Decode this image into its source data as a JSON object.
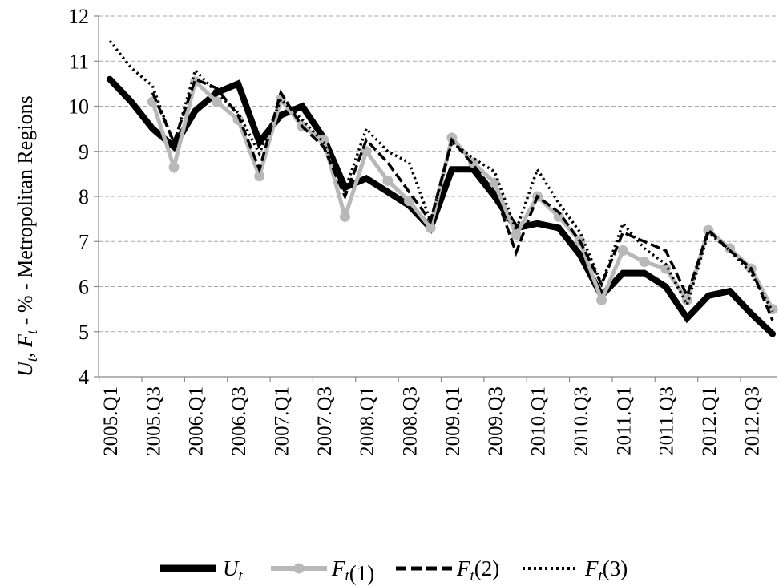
{
  "chart_data": {
    "type": "line",
    "ylabel": "U_t, F_t - % - Metropolitan Regions",
    "ylim": [
      4,
      12
    ],
    "yticks": [
      4,
      5,
      6,
      7,
      8,
      9,
      10,
      11,
      12
    ],
    "x": [
      "2005.Q1",
      "2005.Q2",
      "2005.Q3",
      "2005.Q4",
      "2006.Q1",
      "2006.Q2",
      "2006.Q3",
      "2006.Q4",
      "2007.Q1",
      "2007.Q2",
      "2007.Q3",
      "2007.Q4",
      "2008.Q1",
      "2008.Q2",
      "2008.Q3",
      "2008.Q4",
      "2009.Q1",
      "2009.Q2",
      "2009.Q3",
      "2009.Q4",
      "2010.Q1",
      "2010.Q2",
      "2010.Q3",
      "2010.Q4",
      "2011.Q1",
      "2011.Q2",
      "2011.Q3",
      "2011.Q4",
      "2012.Q1",
      "2012.Q2",
      "2012.Q3",
      "2012.Q4"
    ],
    "xtick_labels": [
      "2005.Q1",
      "2005.Q3",
      "2006.Q1",
      "2006.Q3",
      "2007.Q1",
      "2007.Q3",
      "2008.Q1",
      "2008.Q3",
      "2009.Q1",
      "2009.Q3",
      "2010.Q1",
      "2010.Q3",
      "2011.Q1",
      "2011.Q3",
      "2012.Q1",
      "2012.Q3"
    ],
    "grid": "horizontal dashed",
    "legend_position": "bottom",
    "series": [
      {
        "name": "U_t",
        "style": "solid-thick",
        "color": "#000000",
        "values": [
          10.6,
          10.1,
          9.5,
          9.1,
          9.9,
          10.3,
          10.5,
          9.2,
          9.8,
          10.0,
          9.3,
          8.2,
          8.4,
          8.1,
          7.8,
          7.3,
          8.6,
          8.6,
          8.0,
          7.3,
          7.4,
          7.3,
          6.7,
          5.8,
          6.3,
          6.3,
          6.0,
          5.3,
          5.8,
          5.9,
          5.4,
          4.95
        ]
      },
      {
        "name": "F_t(1)",
        "style": "solid-markers",
        "color": "#b8b8b8",
        "values": [
          null,
          null,
          10.1,
          8.65,
          10.55,
          10.1,
          9.7,
          8.45,
          10.15,
          9.55,
          9.25,
          7.55,
          9.0,
          8.35,
          7.9,
          7.3,
          9.3,
          8.75,
          8.3,
          7.15,
          8.0,
          7.55,
          7.0,
          5.7,
          6.8,
          6.55,
          6.4,
          5.7,
          7.25,
          6.85,
          6.4,
          5.5
        ]
      },
      {
        "name": "F_t(2)",
        "style": "dashed",
        "color": "#000000",
        "values": [
          null,
          null,
          10.3,
          9.2,
          10.6,
          10.4,
          9.8,
          8.6,
          10.3,
          9.55,
          9.1,
          8.0,
          9.25,
          8.75,
          8.1,
          7.45,
          9.25,
          8.7,
          8.1,
          6.75,
          8.0,
          7.65,
          7.0,
          6.05,
          7.2,
          7.0,
          6.8,
          5.8,
          7.25,
          6.8,
          6.4,
          5.25
        ]
      },
      {
        "name": "F_t(3)",
        "style": "dotted",
        "color": "#000000",
        "values": [
          11.45,
          10.85,
          10.45,
          9.15,
          10.8,
          10.3,
          9.85,
          8.95,
          10.15,
          9.7,
          9.2,
          8.15,
          9.5,
          9.0,
          8.75,
          7.45,
          9.2,
          8.85,
          8.55,
          7.25,
          8.6,
          7.85,
          7.2,
          6.05,
          7.4,
          6.85,
          6.5,
          5.6,
          7.2,
          6.8,
          6.3,
          5.45
        ]
      }
    ]
  },
  "legend": {
    "u": "U",
    "f1_args": "(1)",
    "f2_args": "(2)",
    "f3_args": "(3)",
    "f": "F",
    "sub": "t"
  }
}
